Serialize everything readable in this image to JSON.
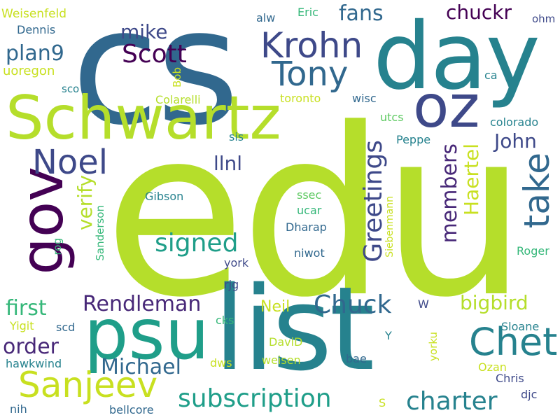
{
  "palette": {
    "lime": "#b5de2b",
    "yellow_green": "#c8e020",
    "light_green": "#5ec962",
    "green": "#35b779",
    "teal_green": "#1f9e89",
    "teal": "#26828e",
    "steel_blue": "#31688e",
    "blue_slate": "#3e4989",
    "indigo": "#482878",
    "dark_purple": "#440154"
  },
  "words": [
    {
      "text": "edu",
      "color": "#b5de2b",
      "vertical": false
    },
    {
      "text": "cs",
      "color": "#31688e",
      "vertical": false
    },
    {
      "text": "day",
      "color": "#26828e",
      "vertical": false
    },
    {
      "text": "list",
      "color": "#26828e",
      "vertical": false
    },
    {
      "text": "Schwartz",
      "color": "#b5de2b",
      "vertical": false
    },
    {
      "text": "psu",
      "color": "#1f9e89",
      "vertical": false
    },
    {
      "text": "oz",
      "color": "#3e4989",
      "vertical": false
    },
    {
      "text": "gov",
      "color": "#440154",
      "vertical": true
    },
    {
      "text": "Tony",
      "color": "#31688e",
      "vertical": false
    },
    {
      "text": "Krohn",
      "color": "#3e4989",
      "vertical": false
    },
    {
      "text": "Chet",
      "color": "#26828e",
      "vertical": false
    },
    {
      "text": "Sanjeev",
      "color": "#c8e020",
      "vertical": false
    },
    {
      "text": "take",
      "color": "#31688e",
      "vertical": true
    },
    {
      "text": "Noel",
      "color": "#3e4989",
      "vertical": false
    },
    {
      "text": "Greetings",
      "color": "#3e4989",
      "vertical": true
    },
    {
      "text": "subscription",
      "color": "#1f9e89",
      "vertical": false
    },
    {
      "text": "Scott",
      "color": "#440154",
      "vertical": false
    },
    {
      "text": "signed",
      "color": "#1f9e89",
      "vertical": false
    },
    {
      "text": "Chuck",
      "color": "#31688e",
      "vertical": false
    },
    {
      "text": "charter",
      "color": "#26828e",
      "vertical": false
    },
    {
      "text": "Michael",
      "color": "#31688e",
      "vertical": false
    },
    {
      "text": "Rendleman",
      "color": "#482878",
      "vertical": false
    },
    {
      "text": "plan9",
      "color": "#31688e",
      "vertical": false
    },
    {
      "text": "fans",
      "color": "#31688e",
      "vertical": false
    },
    {
      "text": "members",
      "color": "#482878",
      "vertical": true
    },
    {
      "text": "order",
      "color": "#482878",
      "vertical": false
    },
    {
      "text": "first",
      "color": "#35b779",
      "vertical": false
    },
    {
      "text": "verify",
      "color": "#b5de2b",
      "vertical": true
    },
    {
      "text": "Haertel",
      "color": "#c8e020",
      "vertical": true
    },
    {
      "text": "mike",
      "color": "#3e4989",
      "vertical": false
    },
    {
      "text": "chuckr",
      "color": "#440154",
      "vertical": false
    },
    {
      "text": "John",
      "color": "#3e4989",
      "vertical": false
    },
    {
      "text": "bigbird",
      "color": "#b5de2b",
      "vertical": false
    },
    {
      "text": "llnl",
      "color": "#3e4989",
      "vertical": false
    },
    {
      "text": "Neil",
      "color": "#c8e020",
      "vertical": false
    },
    {
      "text": "uoregon",
      "color": "#c8e020",
      "vertical": false
    },
    {
      "text": "Weisenfeld",
      "color": "#c8e020",
      "vertical": false
    },
    {
      "text": "Dennis",
      "color": "#31688e",
      "vertical": false
    },
    {
      "text": "alw",
      "color": "#31688e",
      "vertical": false
    },
    {
      "text": "Eric",
      "color": "#35b779",
      "vertical": false
    },
    {
      "text": "ohm",
      "color": "#3e4989",
      "vertical": false
    },
    {
      "text": "sco",
      "color": "#26828e",
      "vertical": false
    },
    {
      "text": "Bob",
      "color": "#c8e020",
      "vertical": true
    },
    {
      "text": "Colarelli",
      "color": "#b5de2b",
      "vertical": false
    },
    {
      "text": "toronto",
      "color": "#c8e020",
      "vertical": false
    },
    {
      "text": "wisc",
      "color": "#31688e",
      "vertical": false
    },
    {
      "text": "ca",
      "color": "#26828e",
      "vertical": false
    },
    {
      "text": "utcs",
      "color": "#5ec962",
      "vertical": false
    },
    {
      "text": "colorado",
      "color": "#26828e",
      "vertical": false
    },
    {
      "text": "sis",
      "color": "#26828e",
      "vertical": false
    },
    {
      "text": "Peppe",
      "color": "#26828e",
      "vertical": false
    },
    {
      "text": "Gibson",
      "color": "#26828e",
      "vertical": false
    },
    {
      "text": "ssec",
      "color": "#5ec962",
      "vertical": false
    },
    {
      "text": "ucar",
      "color": "#35b779",
      "vertical": false
    },
    {
      "text": "Siebenmann",
      "color": "#c8e020",
      "vertical": true
    },
    {
      "text": "Sanderson",
      "color": "#35b779",
      "vertical": true
    },
    {
      "text": "rog",
      "color": "#35b779",
      "vertical": true
    },
    {
      "text": "Dharap",
      "color": "#31688e",
      "vertical": false
    },
    {
      "text": "niwot",
      "color": "#31688e",
      "vertical": false
    },
    {
      "text": "Roger",
      "color": "#35b779",
      "vertical": false
    },
    {
      "text": "york",
      "color": "#3e4989",
      "vertical": false
    },
    {
      "text": "rjg",
      "color": "#3e4989",
      "vertical": false
    },
    {
      "text": "W",
      "color": "#3e4989",
      "vertical": false
    },
    {
      "text": "Yigit",
      "color": "#c8e020",
      "vertical": false
    },
    {
      "text": "scd",
      "color": "#31688e",
      "vertical": false
    },
    {
      "text": "cks",
      "color": "#35b779",
      "vertical": false
    },
    {
      "text": "Y",
      "color": "#26828e",
      "vertical": false
    },
    {
      "text": "Sloane",
      "color": "#26828e",
      "vertical": false
    },
    {
      "text": "DaviD",
      "color": "#b5de2b",
      "vertical": false
    },
    {
      "text": "yorku",
      "color": "#c8e020",
      "vertical": true
    },
    {
      "text": "hawkwind",
      "color": "#26828e",
      "vertical": false
    },
    {
      "text": "dws",
      "color": "#c8e020",
      "vertical": false
    },
    {
      "text": "weisen",
      "color": "#b5de2b",
      "vertical": false
    },
    {
      "text": "bae",
      "color": "#31688e",
      "vertical": false
    },
    {
      "text": "Ozan",
      "color": "#c8e020",
      "vertical": false
    },
    {
      "text": "Chris",
      "color": "#3e4989",
      "vertical": false
    },
    {
      "text": "djc",
      "color": "#3e4989",
      "vertical": false
    },
    {
      "text": "nih",
      "color": "#31688e",
      "vertical": false
    },
    {
      "text": "bellcore",
      "color": "#31688e",
      "vertical": false
    },
    {
      "text": "S",
      "color": "#c8e020",
      "vertical": false
    }
  ]
}
